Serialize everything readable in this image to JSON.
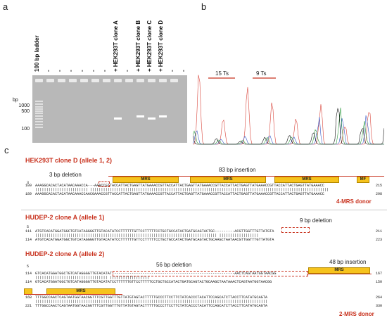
{
  "panels": {
    "a": "a",
    "b": "b",
    "c": "c"
  },
  "gel": {
    "bp_unit": "bp",
    "bp_marks": [
      "1000",
      "500",
      "100"
    ],
    "lanes": [
      "100 bp ladder",
      "-",
      "-",
      "-",
      "-",
      "-",
      "-",
      "+ HEK293T clone A",
      "-",
      "+ HEK293T clone B",
      "+ HEK293T clone C",
      "+ HEK293T clone D",
      "-",
      "-"
    ]
  },
  "chromatogram": {
    "run1": "15 Ts",
    "run2": "9 Ts"
  },
  "alignments": [
    {
      "title": "HEK293T clone D (allele 1, 2)",
      "marker_top": "3",
      "annotations": [
        "3 bp deletion",
        "83 bp insertion"
      ],
      "mrs": [
        "MRS",
        "MRS",
        "MRS",
        "MF"
      ],
      "rows": [
        {
          "left": "109",
          "seq": "AAAGGCACACTACATAACAAACCA---AAACCGTTACCATTACTGAGTTATGAAACCGTTACCATTACTGAGTTATGAAACCGTTACCATTACTGAGTTATGAAACCGTTACCATTACTGAGTTATGAAACC",
          "right": "215"
        },
        {
          "left": "",
          "seq": "||||||||||||||||||||||||   |||||||||||||||||||||||||||||||||||||||||||||||||||||||||||||||||||||||||||||||||||||||||||||||||||||||||||||",
          "right": ""
        },
        {
          "left": "189",
          "seq": "AAAGGCACACTACATAACAAACCAACGAAACCGTTACCATTACTGAGTTATGAAACCGTTACCATTACTGAGTTATGAAACCGTTACCATTACTGAGTTATGAAACCGTTACCATTACTGAGTTATGAAACC",
          "right": "298"
        }
      ],
      "donor": "4-MRS donor"
    },
    {
      "title": "HUDEP-2 clone A (allele 1)",
      "marker_top": "5",
      "annotations": [
        "9 bp deletion"
      ],
      "rows": [
        {
          "left": "111",
          "seq": "ATGTCACATGGATGGCTGTCATAGGGGTTGTACATATCCTTTTTTGTTCCTTTTTCCTGCTGCCATACTGATGCAGTACTGC---------ACGTTGGTTTGTTATGTA",
          "right": "211"
        },
        {
          "left": "",
          "seq": "|||||||||||||||||||||||||||||||||||||||||||||||||||||||||||||||||||||||||||||||||||         ||||||||||||||||||",
          "right": ""
        },
        {
          "left": "114",
          "seq": "ATGTCACATGGATGGCTGTCATAGGGGTTGTACATATCCTTTTTTGTTCCTTTTTCCTGCTGCCATACTGATGCAGTACTGCAAGCTAATAACGTTGGTTTGTTATGTA",
          "right": "223"
        }
      ]
    },
    {
      "title": "HUDEP-2 clone A (allele 2)",
      "marker_top": "5",
      "annotations": [
        "56 bp deletion",
        "48 bp insertion"
      ],
      "mrs": [
        "MRS",
        "MRS"
      ],
      "rows": [
        {
          "left": "114",
          "seq": "GTCACATGGATGGCTGTCATAGGGGTTGTACATAT--------------------------------------------------------AACTCAGTAATGGTAACGG",
          "right": "167"
        },
        {
          "left": "",
          "seq": "|||||||||||||||||||||||||||||||||                                                        ||||||||||||||||||",
          "right": ""
        },
        {
          "left": "114",
          "seq": "GTCACATGGATGGCTGTCATAGGGGTTGTACATATCCTTTTTTGTTCCTTTTTCCTGCTGCCATACTGATGCAGTACTGCAAGCTAATAAACTCAGTAATGGTAACGG",
          "right": "150"
        },
        {
          "left": "168",
          "seq": "TTTGGCCAACTCAGTAATGGTAACGGTTTCGTTGGTTTGTTATGTAGTACTTTTTGCCCTTCCTTCTATCACCCTACATTCCAGCATCTTACCTTCATATGCAGTA",
          "right": "264"
        },
        {
          "left": "",
          "seq": "||||||||||||||||||||||||||||||||||||||||||||||||||||||||||||||||||||||||||||||||||||||||||||||||||||||||||",
          "right": ""
        },
        {
          "left": "221",
          "seq": "TTTGGCCAACTCAGTAATGGTAACGGTTTCGTTGGTTTGTTATGTAGTACTTTTTGCCCTTCCTTCTATCACCCTACATTCCAGCATCTTACCTTCATATGCAGTA",
          "right": "330"
        }
      ],
      "donor": "2-MRS donor"
    }
  ]
}
